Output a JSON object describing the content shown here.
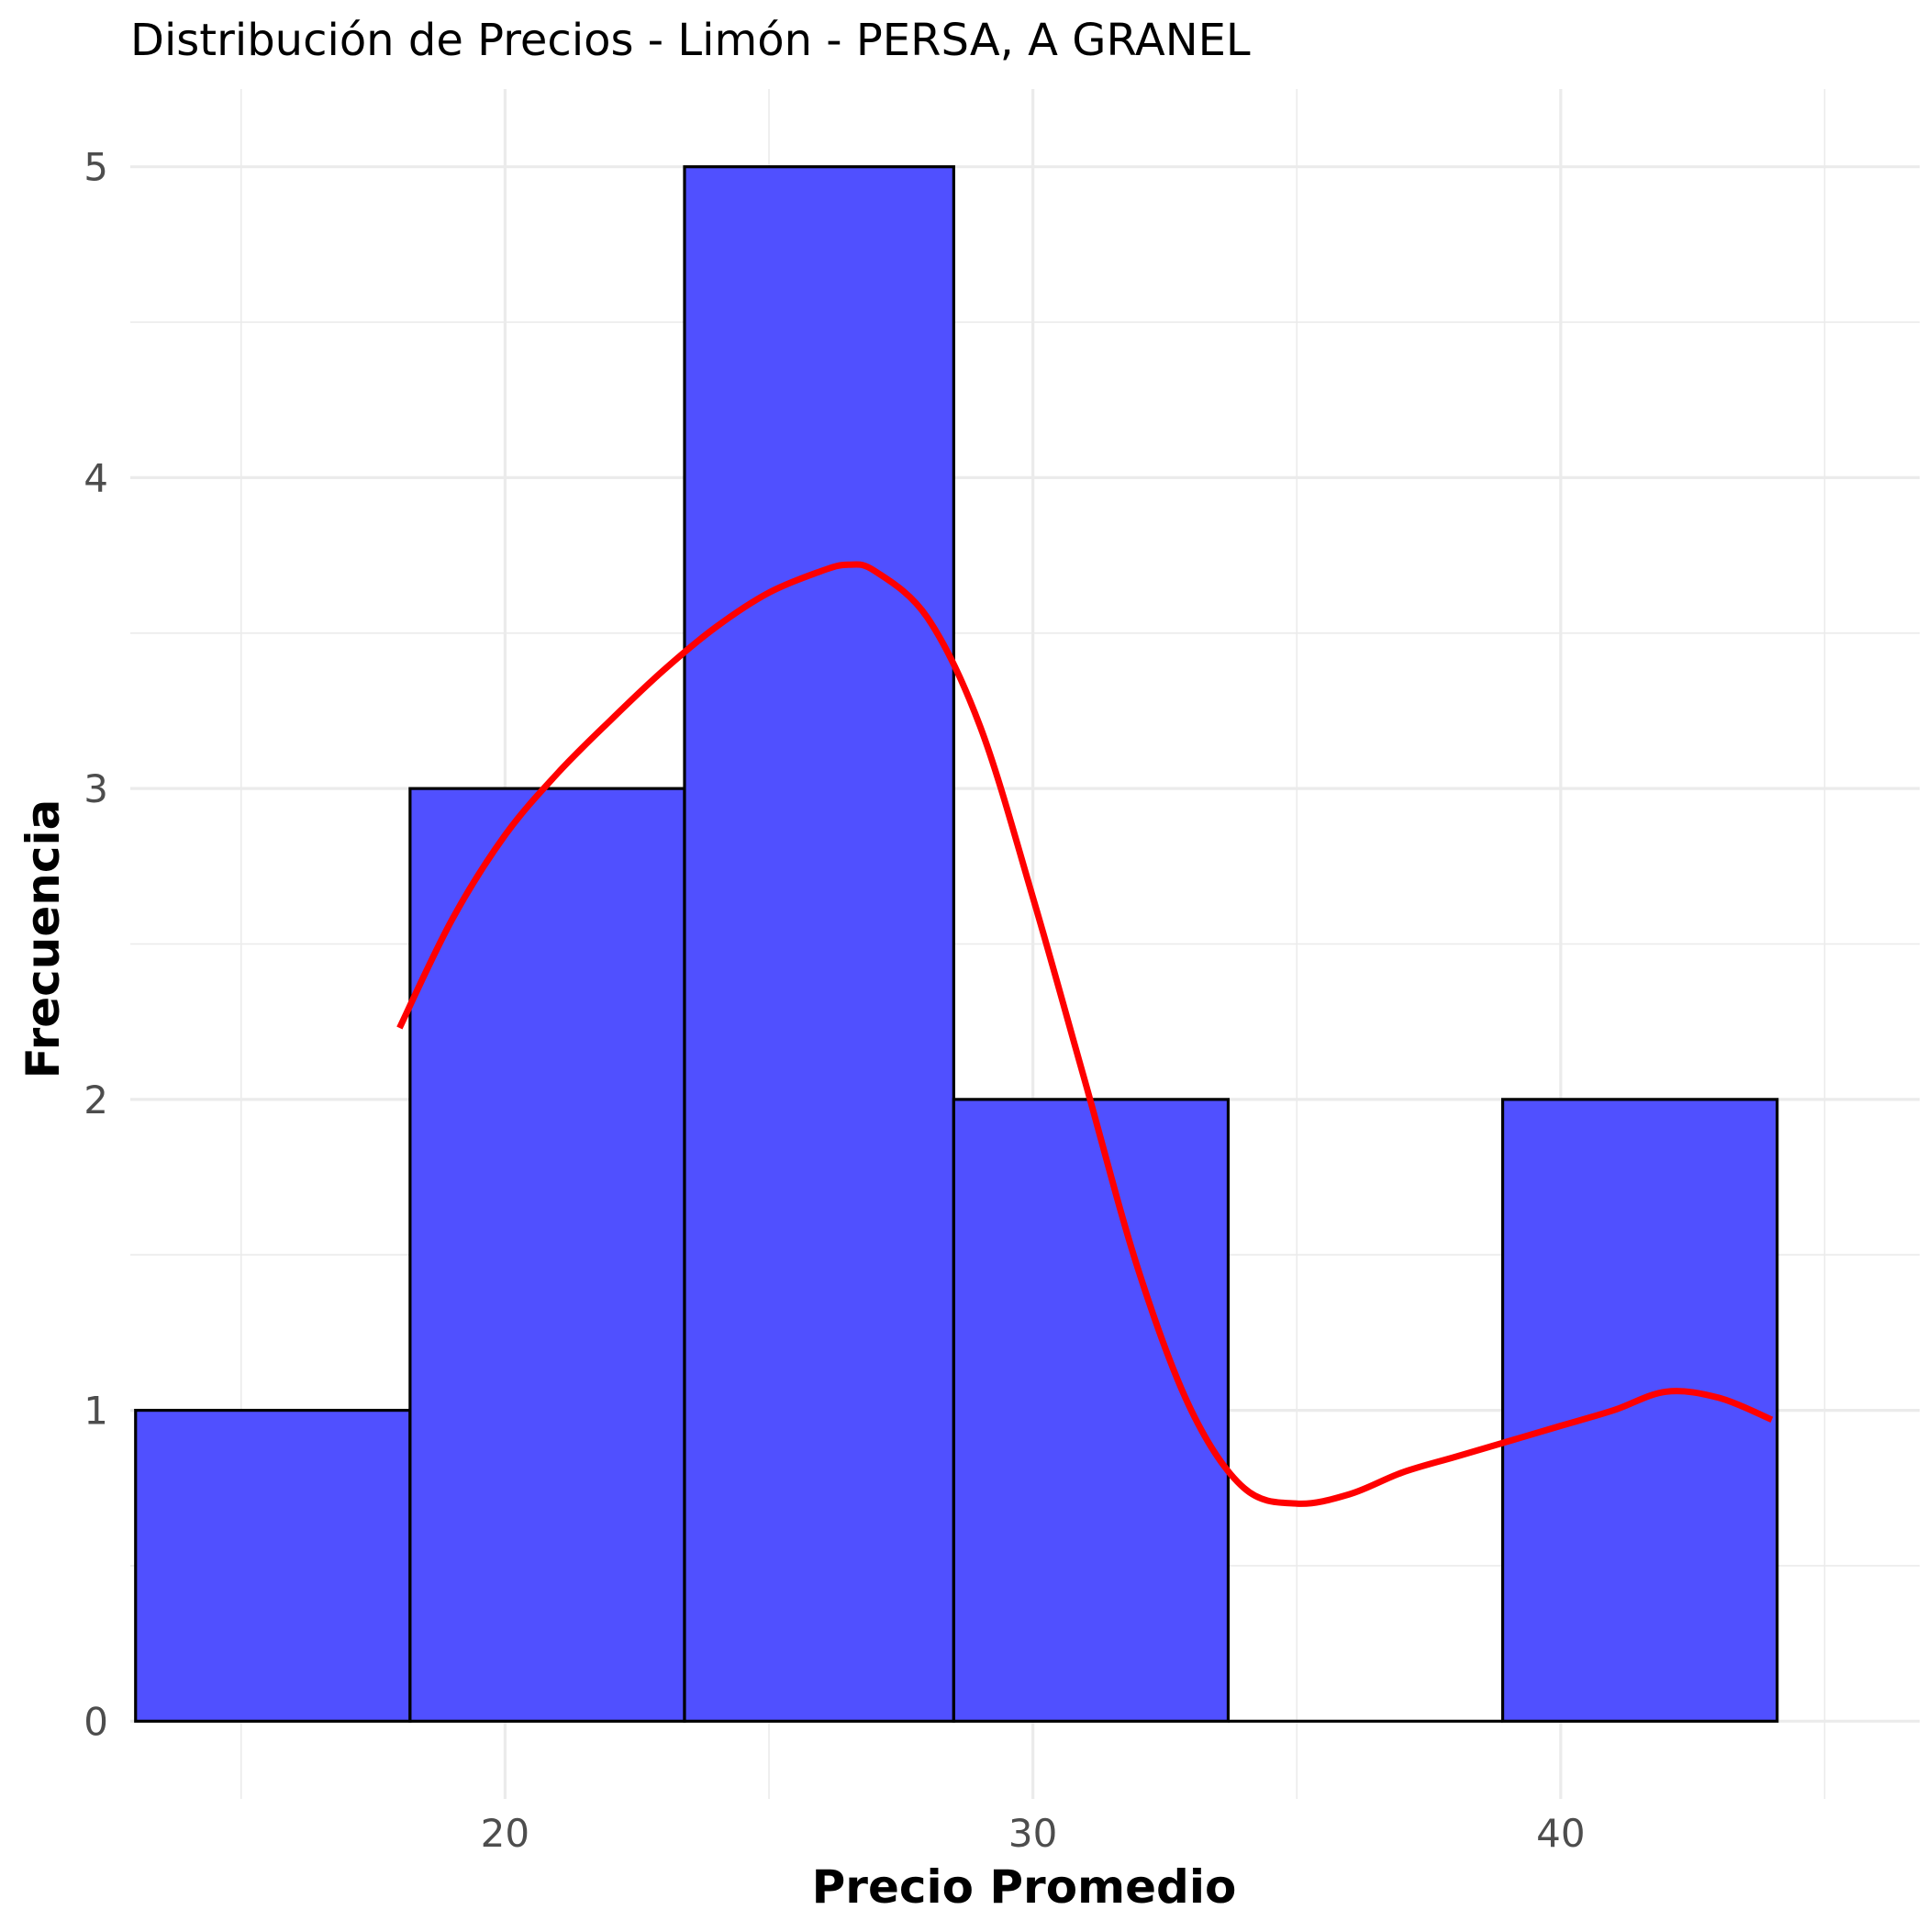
{
  "chart_data": {
    "type": "bar",
    "subtype": "histogram",
    "title": "Distribución de Precios - Limón - PERSA, A GRANEL",
    "xlabel": "Precio Promedio",
    "ylabel": "Frecuencia",
    "xlim": [
      12.9,
      46.8
    ],
    "ylim": [
      -0.25,
      5.25
    ],
    "x_ticks": [
      20,
      30,
      40
    ],
    "x_tick_labels": [
      "20",
      "30",
      "40"
    ],
    "y_ticks": [
      0,
      1,
      2,
      3,
      4,
      5
    ],
    "y_tick_labels": [
      "0",
      "1",
      "2",
      "3",
      "4",
      "5"
    ],
    "x_minor_ticks": [
      15,
      25,
      35,
      45
    ],
    "y_minor_ticks": [
      0.5,
      1.5,
      2.5,
      3.5,
      4.5
    ],
    "grid": true,
    "bins": [
      {
        "x0": 13.0,
        "x1": 18.2,
        "count": 1
      },
      {
        "x0": 18.2,
        "x1": 23.4,
        "count": 3
      },
      {
        "x0": 23.4,
        "x1": 28.5,
        "count": 5
      },
      {
        "x0": 28.5,
        "x1": 33.7,
        "count": 2
      },
      {
        "x0": 33.7,
        "x1": 38.9,
        "count": 0
      },
      {
        "x0": 38.9,
        "x1": 44.1,
        "count": 2
      }
    ],
    "bar_fill": "#5050ff",
    "bar_stroke": "#000000",
    "density_curve": {
      "color": "#ff0000",
      "x": [
        18.0,
        19.0,
        20.0,
        21.0,
        22.0,
        23.0,
        24.0,
        25.0,
        26.0,
        26.5,
        27.0,
        28.0,
        29.0,
        30.0,
        31.0,
        32.0,
        33.0,
        34.0,
        35.0,
        36.0,
        37.0,
        38.0,
        39.0,
        40.0,
        41.0,
        42.0,
        43.0,
        44.0
      ],
      "y": [
        2.23,
        2.58,
        2.85,
        3.05,
        3.22,
        3.38,
        3.52,
        3.63,
        3.7,
        3.72,
        3.7,
        3.55,
        3.2,
        2.65,
        2.05,
        1.45,
        1.0,
        0.75,
        0.7,
        0.73,
        0.8,
        0.85,
        0.9,
        0.95,
        1.0,
        1.06,
        1.04,
        0.97
      ]
    }
  }
}
